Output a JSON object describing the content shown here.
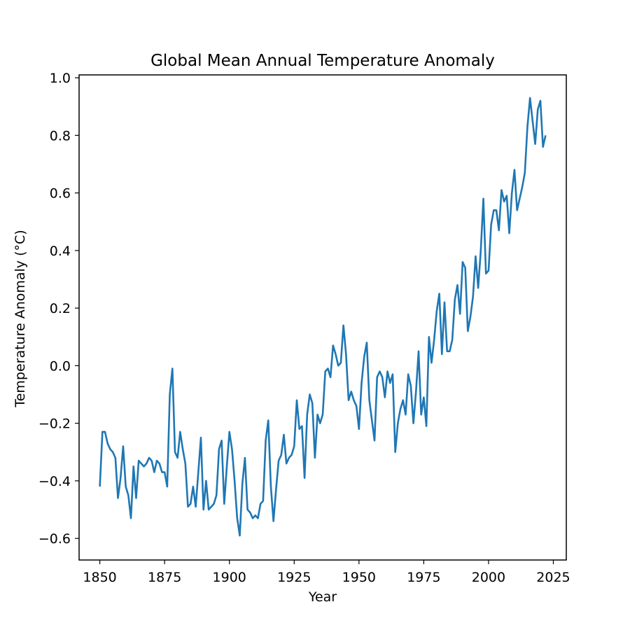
{
  "chart_data": {
    "type": "line",
    "title": "Global Mean Annual Temperature Anomaly",
    "xlabel": "Year",
    "ylabel": "Temperature Anomaly (°C)",
    "xlim": [
      1842,
      2030
    ],
    "ylim": [
      -0.675,
      1.01
    ],
    "xticks": [
      1850,
      1875,
      1900,
      1925,
      1950,
      1975,
      2000,
      2025
    ],
    "xtick_labels": [
      "1850",
      "1875",
      "1900",
      "1925",
      "1950",
      "1975",
      "2000",
      "2025"
    ],
    "yticks": [
      -0.6,
      -0.4,
      -0.2,
      0.0,
      0.2,
      0.4,
      0.6,
      0.8,
      1.0
    ],
    "ytick_labels": [
      "−0.6",
      "−0.4",
      "−0.2",
      "0.0",
      "0.2",
      "0.4",
      "0.6",
      "0.8",
      "1.0"
    ],
    "grid": false,
    "series": [
      {
        "color": "#1f77b4",
        "x": [
          1850,
          1851,
          1852,
          1853,
          1854,
          1855,
          1856,
          1857,
          1858,
          1859,
          1860,
          1861,
          1862,
          1863,
          1864,
          1865,
          1866,
          1867,
          1868,
          1869,
          1870,
          1871,
          1872,
          1873,
          1874,
          1875,
          1876,
          1877,
          1878,
          1879,
          1880,
          1881,
          1882,
          1883,
          1884,
          1885,
          1886,
          1887,
          1888,
          1889,
          1890,
          1891,
          1892,
          1893,
          1894,
          1895,
          1896,
          1897,
          1898,
          1899,
          1900,
          1901,
          1902,
          1903,
          1904,
          1905,
          1906,
          1907,
          1908,
          1909,
          1910,
          1911,
          1912,
          1913,
          1914,
          1915,
          1916,
          1917,
          1918,
          1919,
          1920,
          1921,
          1922,
          1923,
          1924,
          1925,
          1926,
          1927,
          1928,
          1929,
          1930,
          1931,
          1932,
          1933,
          1934,
          1935,
          1936,
          1937,
          1938,
          1939,
          1940,
          1941,
          1942,
          1943,
          1944,
          1945,
          1946,
          1947,
          1948,
          1949,
          1950,
          1951,
          1952,
          1953,
          1954,
          1955,
          1956,
          1957,
          1958,
          1959,
          1960,
          1961,
          1962,
          1963,
          1964,
          1965,
          1966,
          1967,
          1968,
          1969,
          1970,
          1971,
          1972,
          1973,
          1974,
          1975,
          1976,
          1977,
          1978,
          1979,
          1980,
          1981,
          1982,
          1983,
          1984,
          1985,
          1986,
          1987,
          1988,
          1989,
          1990,
          1991,
          1992,
          1993,
          1994,
          1995,
          1996,
          1997,
          1998,
          1999,
          2000,
          2001,
          2002,
          2003,
          2004,
          2005,
          2006,
          2007,
          2008,
          2009,
          2010,
          2011,
          2012,
          2013,
          2014,
          2015,
          2016,
          2017,
          2018,
          2019,
          2020,
          2021,
          2022
        ],
        "y": [
          -0.42,
          -0.23,
          -0.23,
          -0.27,
          -0.29,
          -0.3,
          -0.32,
          -0.46,
          -0.39,
          -0.28,
          -0.42,
          -0.45,
          -0.53,
          -0.35,
          -0.46,
          -0.33,
          -0.34,
          -0.35,
          -0.34,
          -0.32,
          -0.33,
          -0.37,
          -0.33,
          -0.34,
          -0.37,
          -0.37,
          -0.42,
          -0.1,
          -0.01,
          -0.3,
          -0.32,
          -0.23,
          -0.29,
          -0.34,
          -0.49,
          -0.48,
          -0.42,
          -0.49,
          -0.37,
          -0.25,
          -0.5,
          -0.4,
          -0.5,
          -0.49,
          -0.48,
          -0.45,
          -0.29,
          -0.26,
          -0.48,
          -0.35,
          -0.23,
          -0.29,
          -0.4,
          -0.53,
          -0.59,
          -0.41,
          -0.32,
          -0.5,
          -0.51,
          -0.53,
          -0.52,
          -0.53,
          -0.48,
          -0.47,
          -0.26,
          -0.19,
          -0.42,
          -0.54,
          -0.43,
          -0.33,
          -0.31,
          -0.24,
          -0.34,
          -0.32,
          -0.31,
          -0.28,
          -0.12,
          -0.22,
          -0.21,
          -0.39,
          -0.17,
          -0.1,
          -0.13,
          -0.32,
          -0.17,
          -0.2,
          -0.17,
          -0.02,
          -0.01,
          -0.04,
          0.07,
          0.04,
          0.0,
          0.01,
          0.14,
          0.04,
          -0.12,
          -0.09,
          -0.12,
          -0.14,
          -0.22,
          -0.06,
          0.03,
          0.08,
          -0.12,
          -0.19,
          -0.26,
          -0.04,
          -0.02,
          -0.04,
          -0.11,
          -0.02,
          -0.06,
          -0.03,
          -0.3,
          -0.2,
          -0.15,
          -0.12,
          -0.17,
          -0.03,
          -0.07,
          -0.2,
          -0.09,
          0.05,
          -0.17,
          -0.11,
          -0.21,
          0.1,
          0.01,
          0.09,
          0.19,
          0.25,
          0.04,
          0.22,
          0.05,
          0.05,
          0.09,
          0.23,
          0.28,
          0.18,
          0.36,
          0.34,
          0.12,
          0.17,
          0.24,
          0.38,
          0.27,
          0.4,
          0.58,
          0.32,
          0.33,
          0.49,
          0.54,
          0.54,
          0.47,
          0.61,
          0.57,
          0.59,
          0.46,
          0.6,
          0.68,
          0.54,
          0.58,
          0.62,
          0.67,
          0.83,
          0.93,
          0.85,
          0.77,
          0.89,
          0.92,
          0.76,
          0.8
        ]
      }
    ]
  }
}
